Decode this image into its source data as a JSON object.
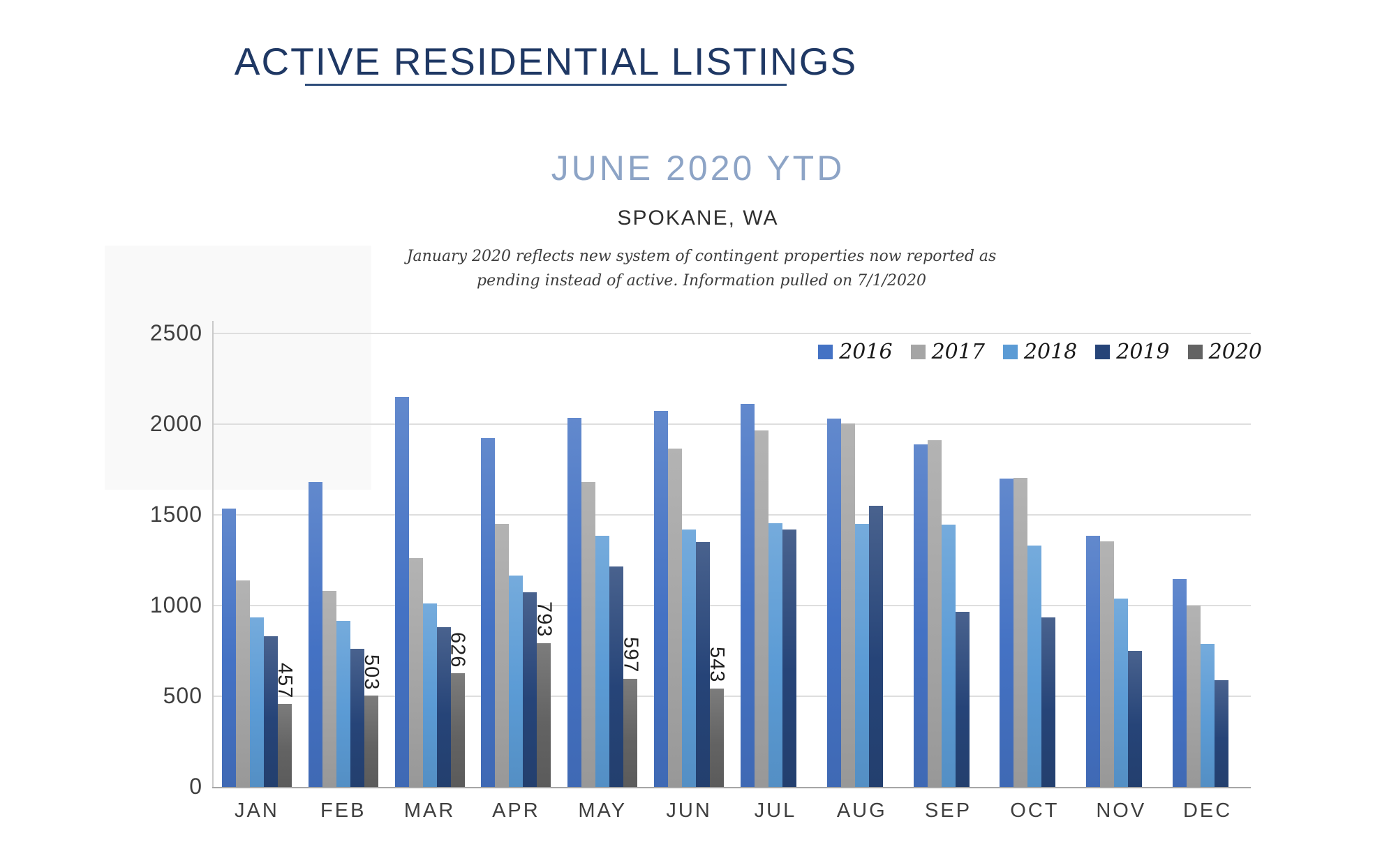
{
  "header": {
    "title": "ACTIVE RESIDENTIAL LISTINGS",
    "subtitle": "JUNE 2020 YTD",
    "location": "SPOKANE, WA",
    "note_line1": "January 2020 reflects new system of contingent properties now reported as",
    "note_line2": "pending instead of active.  Information pulled on 7/1/2020"
  },
  "colors": {
    "title": "#1f3864",
    "title_rule": "#2e4d7b",
    "subtitle": "#8da4c6"
  },
  "chart_data": {
    "type": "bar",
    "title": "Active Residential Listings by Month",
    "categories": [
      "JAN",
      "FEB",
      "MAR",
      "APR",
      "MAY",
      "JUN",
      "JUL",
      "AUG",
      "SEP",
      "OCT",
      "NOV",
      "DEC"
    ],
    "series": [
      {
        "name": "2016",
        "color": "#4472c4",
        "values": [
          1535,
          1680,
          2150,
          1925,
          2035,
          2075,
          2110,
          2030,
          1890,
          1700,
          1385,
          1145
        ]
      },
      {
        "name": "2017",
        "color": "#a5a5a5",
        "values": [
          1140,
          1080,
          1260,
          1450,
          1680,
          1865,
          1965,
          2005,
          1910,
          1705,
          1355,
          1000
        ]
      },
      {
        "name": "2018",
        "color": "#5b9bd5",
        "values": [
          935,
          915,
          1010,
          1165,
          1385,
          1420,
          1455,
          1450,
          1445,
          1330,
          1040,
          790
        ]
      },
      {
        "name": "2019",
        "color": "#264478",
        "values": [
          830,
          760,
          880,
          1075,
          1215,
          1350,
          1420,
          1550,
          965,
          935,
          750,
          590
        ]
      },
      {
        "name": "2020",
        "color": "#636363",
        "data_labels": true,
        "values": [
          457,
          503,
          626,
          793,
          597,
          543,
          null,
          null,
          null,
          null,
          null,
          null
        ]
      }
    ],
    "ylim": [
      0,
      2500
    ],
    "yticks": [
      0,
      500,
      1000,
      1500,
      2000,
      2500
    ],
    "grid": true,
    "legend_position": "top-right"
  }
}
